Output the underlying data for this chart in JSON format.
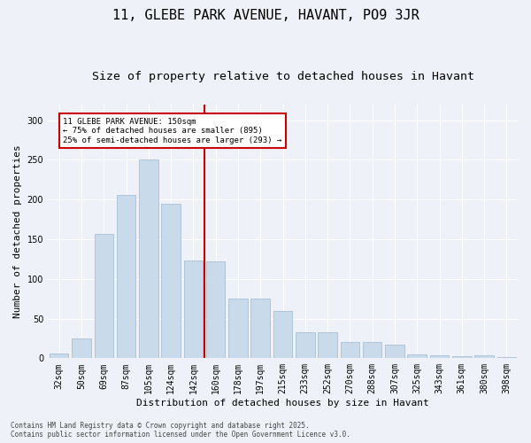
{
  "title": "11, GLEBE PARK AVENUE, HAVANT, PO9 3JR",
  "subtitle": "Size of property relative to detached houses in Havant",
  "xlabel": "Distribution of detached houses by size in Havant",
  "ylabel": "Number of detached properties",
  "categories": [
    "32sqm",
    "50sqm",
    "69sqm",
    "87sqm",
    "105sqm",
    "124sqm",
    "142sqm",
    "160sqm",
    "178sqm",
    "197sqm",
    "215sqm",
    "233sqm",
    "252sqm",
    "270sqm",
    "288sqm",
    "307sqm",
    "325sqm",
    "343sqm",
    "361sqm",
    "380sqm",
    "398sqm"
  ],
  "values": [
    6,
    25,
    157,
    206,
    250,
    195,
    123,
    122,
    75,
    75,
    60,
    33,
    33,
    20,
    20,
    17,
    5,
    4,
    3,
    4,
    2
  ],
  "bar_color": "#c9daea",
  "bar_edge_color": "#a0b8d0",
  "ref_line_color": "#cc0000",
  "annotation_box_color": "#ffffff",
  "annotation_box_edge_color": "#cc0000",
  "annotation_text": "11 GLEBE PARK AVENUE: 150sqm\n← 75% of detached houses are smaller (895)\n25% of semi-detached houses are larger (293) →",
  "background_color": "#eef2f8",
  "grid_color": "#ffffff",
  "footer_text": "Contains HM Land Registry data © Crown copyright and database right 2025.\nContains public sector information licensed under the Open Government Licence v3.0.",
  "ylim": [
    0,
    320
  ],
  "title_fontsize": 11,
  "subtitle_fontsize": 9.5,
  "axis_label_fontsize": 8,
  "tick_fontsize": 7,
  "footer_fontsize": 5.5
}
